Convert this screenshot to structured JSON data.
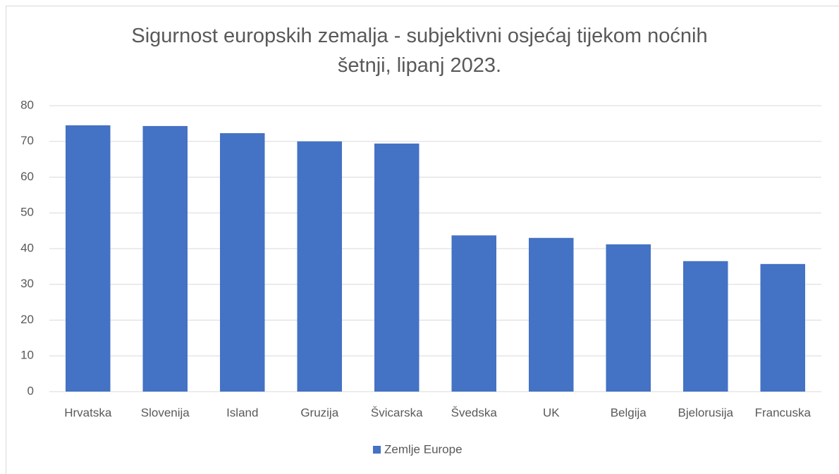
{
  "chart_data": {
    "type": "bar",
    "title": "Sigurnost europskih zemalja - subjektivni osjećaj tijekom noćnih šetnji, lipanj 2023.",
    "categories": [
      "Hrvatska",
      "Slovenija",
      "Island",
      "Gruzija",
      "Švicarska",
      "Švedska",
      "UK",
      "Belgija",
      "Bjelorusija",
      "Francuska"
    ],
    "series": [
      {
        "name": "Zemlje Europe",
        "color": "#4472c4",
        "values": [
          74.5,
          74.3,
          72.3,
          70,
          69.4,
          43.7,
          43,
          41.2,
          36.5,
          35.7
        ]
      }
    ],
    "ylim": [
      0,
      80
    ],
    "yticks": [
      0,
      10,
      20,
      30,
      40,
      50,
      60,
      70,
      80
    ],
    "grid": true,
    "legend": "bottom"
  }
}
